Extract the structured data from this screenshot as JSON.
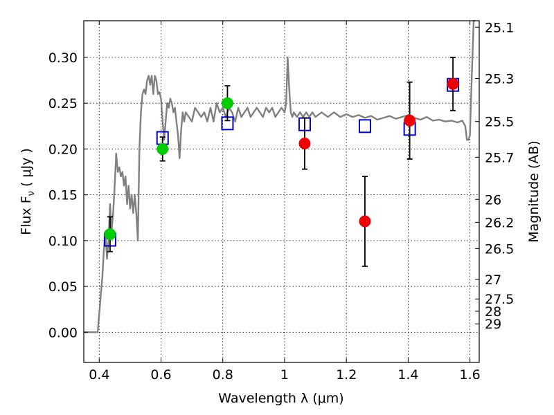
{
  "chart_data": {
    "type": "scatter",
    "xlabel": "Wavelength  λ (μm)",
    "ylabel": "Flux  F",
    "ylabel_sub": "ν",
    "ylabel_unit": "  ( μJy )",
    "right_ylabel": "Magnitude (AB)",
    "xlim": [
      0.35,
      1.63
    ],
    "ylim": [
      -0.033,
      0.34
    ],
    "grid": true,
    "x_ticks": [
      0.4,
      0.6,
      0.8,
      1.0,
      1.2,
      1.4,
      1.6
    ],
    "x_tick_labels": [
      "0.4",
      "0.6",
      "0.8",
      "1",
      "1.2",
      "1.4",
      "1.6"
    ],
    "y_ticks": [
      0.0,
      0.05,
      0.1,
      0.15,
      0.2,
      0.25,
      0.3
    ],
    "y_tick_labels": [
      "0.00",
      "0.05",
      "0.10",
      "0.15",
      "0.20",
      "0.25",
      "0.30"
    ],
    "right_ticks": [
      {
        "label": "25.1",
        "flux": 0.333
      },
      {
        "label": "25.3",
        "flux": 0.277
      },
      {
        "label": "25.5",
        "flux": 0.23
      },
      {
        "label": "25.7",
        "flux": 0.191
      },
      {
        "label": "26",
        "flux": 0.145
      },
      {
        "label": "26.2",
        "flux": 0.12
      },
      {
        "label": "26.5",
        "flux": 0.0913
      },
      {
        "label": "27",
        "flux": 0.0576
      },
      {
        "label": "27.5",
        "flux": 0.0363
      },
      {
        "label": "28",
        "flux": 0.0229
      },
      {
        "label": "29",
        "flux": 0.0091
      }
    ],
    "series": [
      {
        "marker": "line",
        "color": "#808080",
        "x": [
          0.35,
          0.395,
          0.405,
          0.41,
          0.415,
          0.42,
          0.425,
          0.43,
          0.435,
          0.44,
          0.445,
          0.45,
          0.455,
          0.46,
          0.465,
          0.47,
          0.475,
          0.48,
          0.485,
          0.49,
          0.495,
          0.5,
          0.505,
          0.51,
          0.515,
          0.52,
          0.525,
          0.53,
          0.535,
          0.54,
          0.545,
          0.55,
          0.555,
          0.56,
          0.565,
          0.57,
          0.575,
          0.58,
          0.585,
          0.59,
          0.595,
          0.6,
          0.605,
          0.61,
          0.615,
          0.62,
          0.625,
          0.63,
          0.635,
          0.64,
          0.645,
          0.65,
          0.655,
          0.66,
          0.665,
          0.67,
          0.675,
          0.68,
          0.69,
          0.7,
          0.71,
          0.72,
          0.73,
          0.74,
          0.75,
          0.76,
          0.77,
          0.78,
          0.79,
          0.8,
          0.81,
          0.82,
          0.83,
          0.84,
          0.85,
          0.86,
          0.87,
          0.88,
          0.89,
          0.9,
          0.91,
          0.92,
          0.93,
          0.94,
          0.95,
          0.96,
          0.97,
          0.98,
          0.99,
          1.0,
          1.005,
          1.01,
          1.015,
          1.02,
          1.025,
          1.03,
          1.04,
          1.05,
          1.06,
          1.07,
          1.08,
          1.09,
          1.1,
          1.12,
          1.14,
          1.16,
          1.18,
          1.2,
          1.22,
          1.24,
          1.26,
          1.28,
          1.3,
          1.32,
          1.34,
          1.36,
          1.38,
          1.4,
          1.42,
          1.44,
          1.46,
          1.48,
          1.5,
          1.52,
          1.54,
          1.56,
          1.575,
          1.585,
          1.59,
          1.595,
          1.6,
          1.603,
          1.608,
          1.612,
          1.617
        ],
        "y": [
          0.0,
          0.0,
          0.04,
          0.06,
          0.09,
          0.11,
          0.08,
          0.1,
          0.14,
          0.11,
          0.13,
          0.16,
          0.195,
          0.175,
          0.18,
          0.17,
          0.175,
          0.16,
          0.17,
          0.14,
          0.16,
          0.135,
          0.15,
          0.13,
          0.15,
          0.13,
          0.1,
          0.2,
          0.24,
          0.26,
          0.265,
          0.26,
          0.275,
          0.28,
          0.27,
          0.28,
          0.26,
          0.28,
          0.275,
          0.26,
          0.262,
          0.255,
          0.23,
          0.21,
          0.23,
          0.25,
          0.245,
          0.255,
          0.25,
          0.24,
          0.245,
          0.23,
          0.215,
          0.19,
          0.22,
          0.24,
          0.23,
          0.24,
          0.235,
          0.23,
          0.245,
          0.24,
          0.235,
          0.24,
          0.23,
          0.245,
          0.23,
          0.25,
          0.24,
          0.245,
          0.235,
          0.245,
          0.24,
          0.23,
          0.245,
          0.235,
          0.24,
          0.245,
          0.235,
          0.24,
          0.245,
          0.24,
          0.235,
          0.245,
          0.24,
          0.245,
          0.235,
          0.24,
          0.245,
          0.24,
          0.25,
          0.3,
          0.265,
          0.24,
          0.235,
          0.24,
          0.235,
          0.24,
          0.235,
          0.24,
          0.235,
          0.24,
          0.235,
          0.24,
          0.235,
          0.24,
          0.235,
          0.238,
          0.235,
          0.237,
          0.234,
          0.236,
          0.232,
          0.234,
          0.236,
          0.233,
          0.235,
          0.237,
          0.234,
          0.232,
          0.235,
          0.231,
          0.232,
          0.23,
          0.231,
          0.229,
          0.231,
          0.225,
          0.21,
          0.21,
          0.215,
          0.25,
          0.3,
          0.34,
          0.34
        ]
      },
      {
        "marker": "open-square",
        "color": "#0000cc",
        "x": [
          0.435,
          0.605,
          0.815,
          1.065,
          1.26,
          1.405,
          1.545
        ],
        "y": [
          0.101,
          0.212,
          0.228,
          0.227,
          0.225,
          0.222,
          0.27
        ]
      },
      {
        "marker": "circle",
        "color": "#00cc00",
        "x": [
          0.435,
          0.605,
          0.815
        ],
        "y": [
          0.107,
          0.2,
          0.25
        ],
        "yerr": [
          0.019,
          0.013,
          0.019
        ]
      },
      {
        "marker": "circle",
        "color": "#ee0000",
        "x": [
          1.065,
          1.26,
          1.405,
          1.545
        ],
        "y": [
          0.206,
          0.121,
          0.231,
          0.271
        ],
        "yerr": [
          0.028,
          0.049,
          0.042,
          0.029
        ]
      }
    ]
  }
}
